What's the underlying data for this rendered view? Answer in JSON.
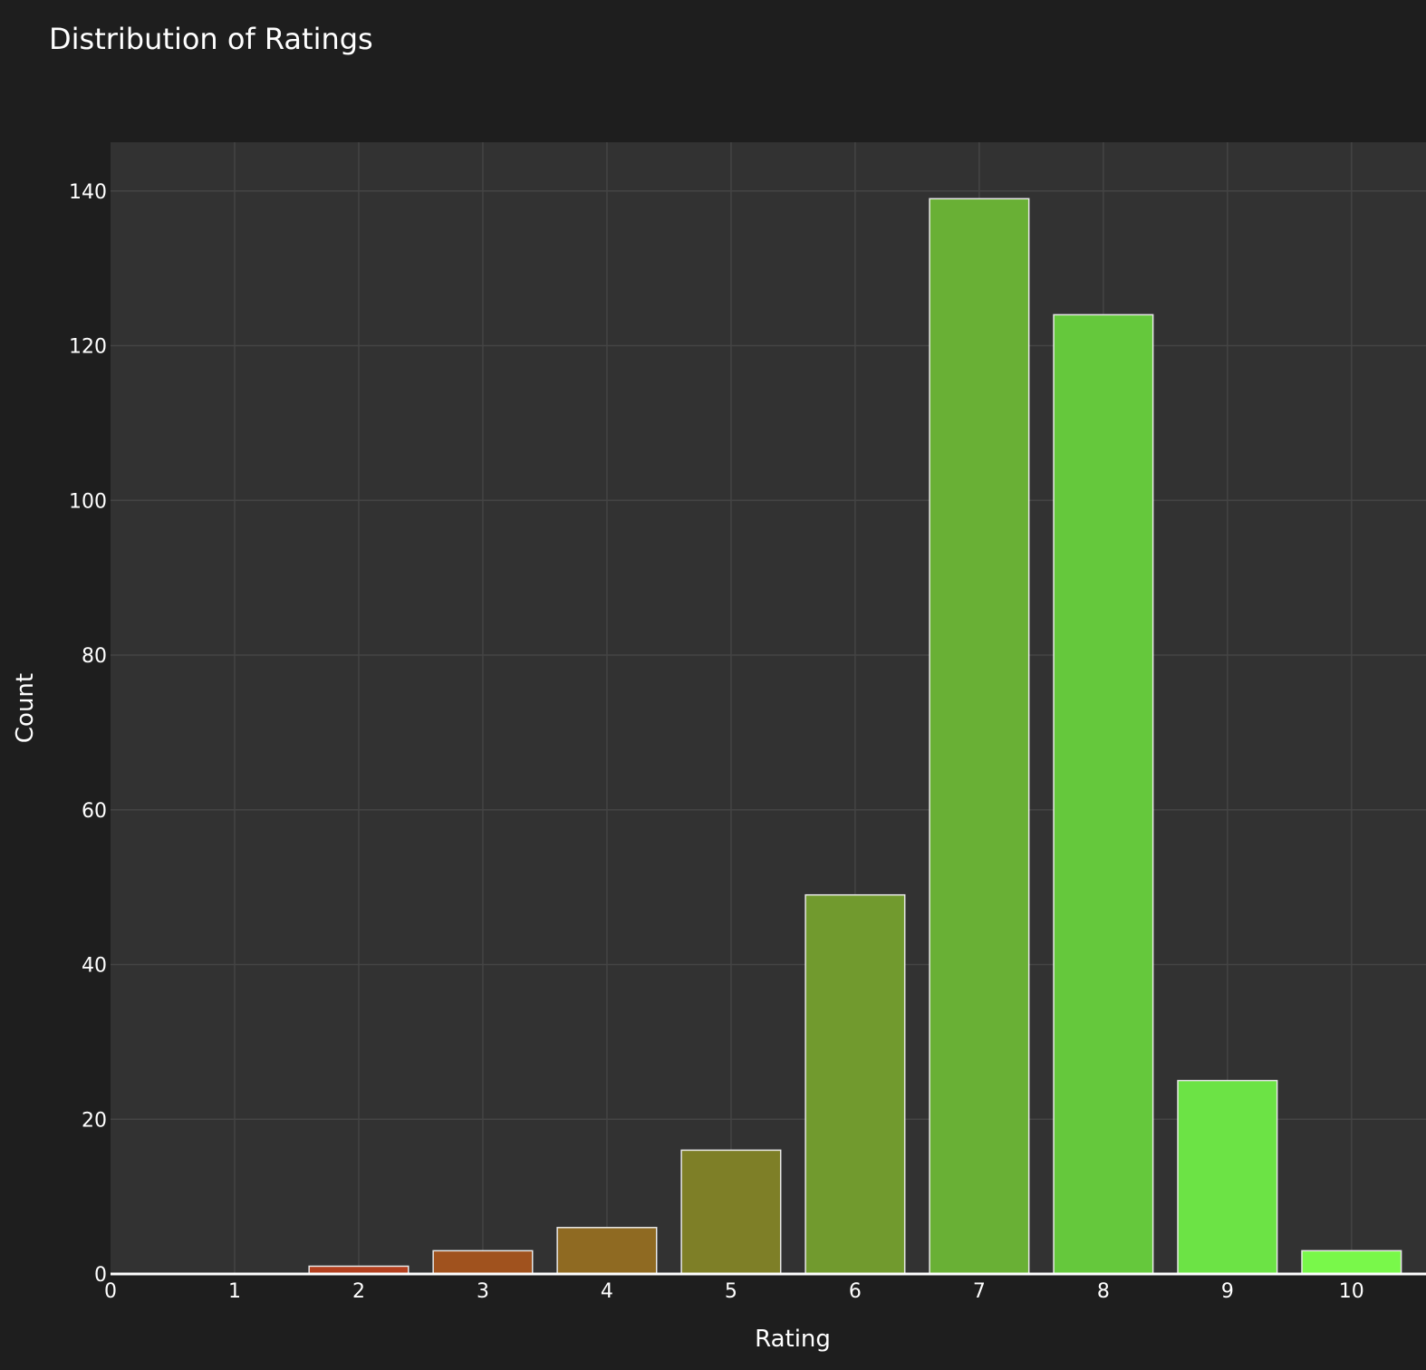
{
  "chart_data": {
    "type": "bar",
    "title": "Distribution of Ratings",
    "xlabel": "Rating",
    "ylabel": "Count",
    "x": [
      0,
      1,
      2,
      3,
      4,
      5,
      6,
      7,
      8,
      9,
      10
    ],
    "values": [
      0,
      0,
      1,
      3,
      6,
      16,
      49,
      139,
      124,
      25,
      3
    ],
    "xticks": [
      "0",
      "1",
      "2",
      "3",
      "4",
      "5",
      "6",
      "7",
      "8",
      "9",
      "10"
    ],
    "yticks": [
      0,
      20,
      40,
      60,
      80,
      100,
      120,
      140
    ],
    "ylim": [
      0,
      146.3
    ],
    "xlim": [
      0,
      10.6
    ],
    "grid": true,
    "bar_colors": [
      "#c0392b",
      "#c0392b",
      "#b3401f",
      "#a0521e",
      "#8f6a22",
      "#7e7f27",
      "#719a2e",
      "#69b035",
      "#65c83c",
      "#6ce345",
      "#79f84a"
    ],
    "bar_edge_color": "#e8e8e8",
    "background_color": "#1e1e1e",
    "plot_background_color": "#323232",
    "grid_color": "#444444"
  }
}
